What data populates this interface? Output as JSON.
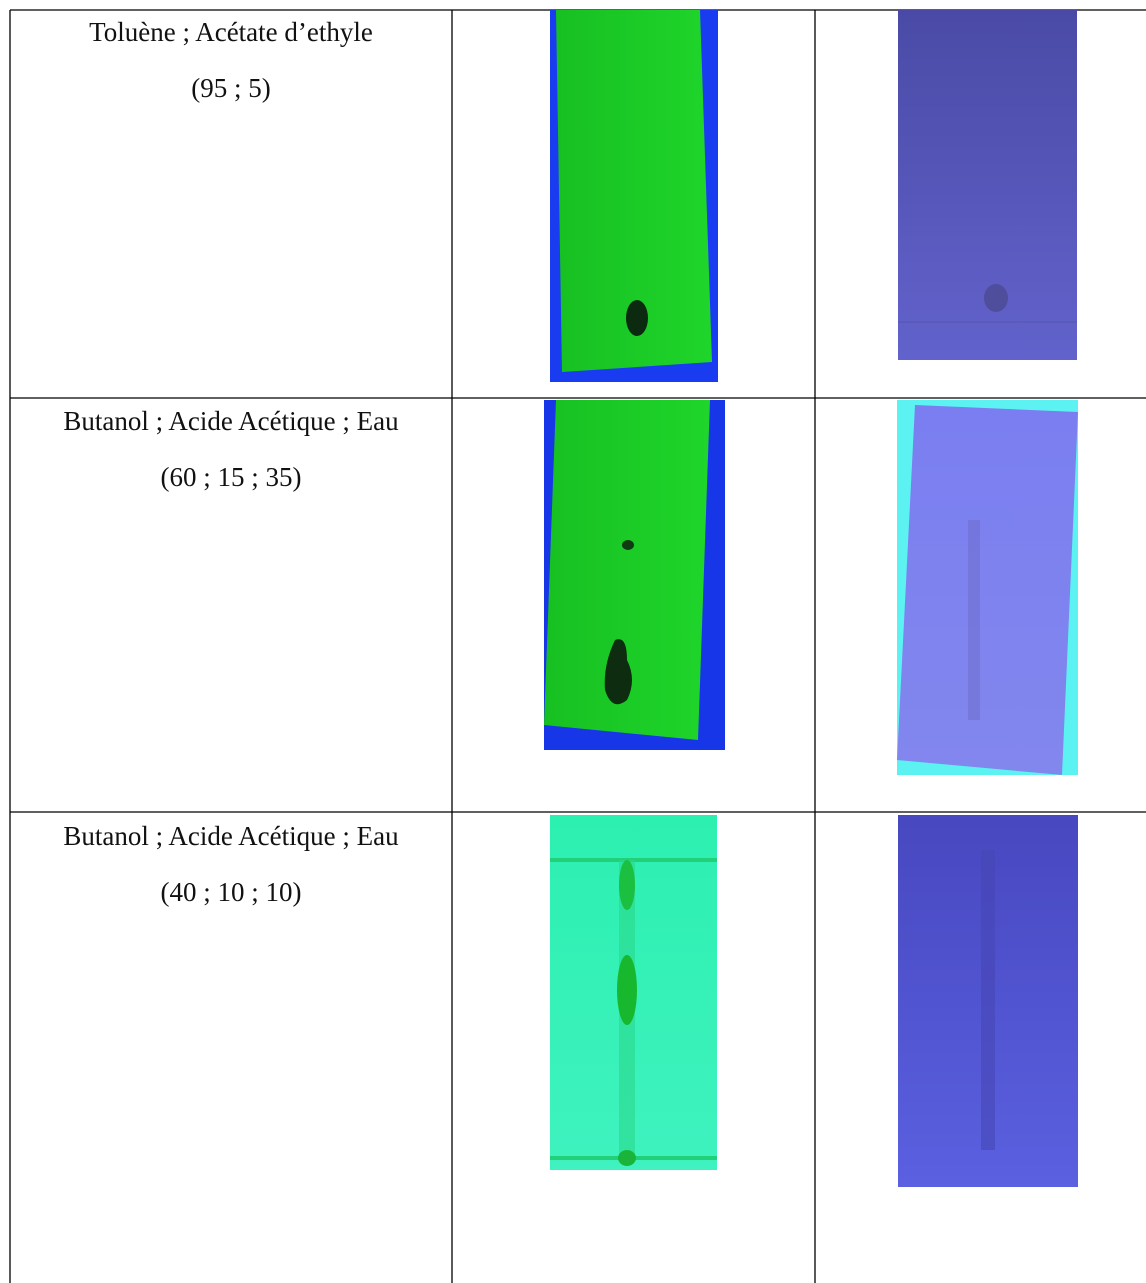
{
  "table": {
    "rows": [
      {
        "solvent": "Toluène ; Acétate d’ethyle",
        "ratio": "(95 ; 5)"
      },
      {
        "solvent": "Butanol ; Acide Acétique ; Eau",
        "ratio": "(60 ; 15 ; 35)"
      },
      {
        "solvent": "Butanol ; Acide Acétique ; Eau",
        "ratio": "(40 ; 10 ; 10)"
      }
    ]
  }
}
